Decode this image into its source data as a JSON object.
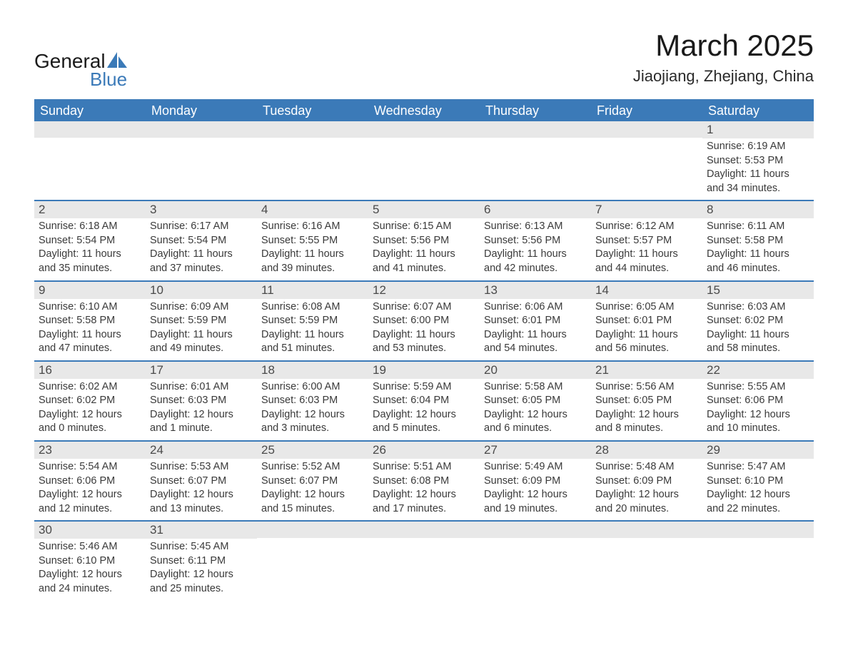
{
  "logo": {
    "word1": "General",
    "word2": "Blue",
    "shape_color": "#3b7ab8"
  },
  "title": "March 2025",
  "location": "Jiaojiang, Zhejiang, China",
  "colors": {
    "header_bg": "#3b7ab8",
    "daynum_bg": "#e8e8e8",
    "text_dark": "#1a1a1a",
    "text_body": "#3a3a3a"
  },
  "days_of_week": [
    "Sunday",
    "Monday",
    "Tuesday",
    "Wednesday",
    "Thursday",
    "Friday",
    "Saturday"
  ],
  "weeks": [
    [
      {
        "day": "",
        "sunrise": "",
        "sunset": "",
        "daylight": ""
      },
      {
        "day": "",
        "sunrise": "",
        "sunset": "",
        "daylight": ""
      },
      {
        "day": "",
        "sunrise": "",
        "sunset": "",
        "daylight": ""
      },
      {
        "day": "",
        "sunrise": "",
        "sunset": "",
        "daylight": ""
      },
      {
        "day": "",
        "sunrise": "",
        "sunset": "",
        "daylight": ""
      },
      {
        "day": "",
        "sunrise": "",
        "sunset": "",
        "daylight": ""
      },
      {
        "day": "1",
        "sunrise": "Sunrise: 6:19 AM",
        "sunset": "Sunset: 5:53 PM",
        "daylight": "Daylight: 11 hours and 34 minutes."
      }
    ],
    [
      {
        "day": "2",
        "sunrise": "Sunrise: 6:18 AM",
        "sunset": "Sunset: 5:54 PM",
        "daylight": "Daylight: 11 hours and 35 minutes."
      },
      {
        "day": "3",
        "sunrise": "Sunrise: 6:17 AM",
        "sunset": "Sunset: 5:54 PM",
        "daylight": "Daylight: 11 hours and 37 minutes."
      },
      {
        "day": "4",
        "sunrise": "Sunrise: 6:16 AM",
        "sunset": "Sunset: 5:55 PM",
        "daylight": "Daylight: 11 hours and 39 minutes."
      },
      {
        "day": "5",
        "sunrise": "Sunrise: 6:15 AM",
        "sunset": "Sunset: 5:56 PM",
        "daylight": "Daylight: 11 hours and 41 minutes."
      },
      {
        "day": "6",
        "sunrise": "Sunrise: 6:13 AM",
        "sunset": "Sunset: 5:56 PM",
        "daylight": "Daylight: 11 hours and 42 minutes."
      },
      {
        "day": "7",
        "sunrise": "Sunrise: 6:12 AM",
        "sunset": "Sunset: 5:57 PM",
        "daylight": "Daylight: 11 hours and 44 minutes."
      },
      {
        "day": "8",
        "sunrise": "Sunrise: 6:11 AM",
        "sunset": "Sunset: 5:58 PM",
        "daylight": "Daylight: 11 hours and 46 minutes."
      }
    ],
    [
      {
        "day": "9",
        "sunrise": "Sunrise: 6:10 AM",
        "sunset": "Sunset: 5:58 PM",
        "daylight": "Daylight: 11 hours and 47 minutes."
      },
      {
        "day": "10",
        "sunrise": "Sunrise: 6:09 AM",
        "sunset": "Sunset: 5:59 PM",
        "daylight": "Daylight: 11 hours and 49 minutes."
      },
      {
        "day": "11",
        "sunrise": "Sunrise: 6:08 AM",
        "sunset": "Sunset: 5:59 PM",
        "daylight": "Daylight: 11 hours and 51 minutes."
      },
      {
        "day": "12",
        "sunrise": "Sunrise: 6:07 AM",
        "sunset": "Sunset: 6:00 PM",
        "daylight": "Daylight: 11 hours and 53 minutes."
      },
      {
        "day": "13",
        "sunrise": "Sunrise: 6:06 AM",
        "sunset": "Sunset: 6:01 PM",
        "daylight": "Daylight: 11 hours and 54 minutes."
      },
      {
        "day": "14",
        "sunrise": "Sunrise: 6:05 AM",
        "sunset": "Sunset: 6:01 PM",
        "daylight": "Daylight: 11 hours and 56 minutes."
      },
      {
        "day": "15",
        "sunrise": "Sunrise: 6:03 AM",
        "sunset": "Sunset: 6:02 PM",
        "daylight": "Daylight: 11 hours and 58 minutes."
      }
    ],
    [
      {
        "day": "16",
        "sunrise": "Sunrise: 6:02 AM",
        "sunset": "Sunset: 6:02 PM",
        "daylight": "Daylight: 12 hours and 0 minutes."
      },
      {
        "day": "17",
        "sunrise": "Sunrise: 6:01 AM",
        "sunset": "Sunset: 6:03 PM",
        "daylight": "Daylight: 12 hours and 1 minute."
      },
      {
        "day": "18",
        "sunrise": "Sunrise: 6:00 AM",
        "sunset": "Sunset: 6:03 PM",
        "daylight": "Daylight: 12 hours and 3 minutes."
      },
      {
        "day": "19",
        "sunrise": "Sunrise: 5:59 AM",
        "sunset": "Sunset: 6:04 PM",
        "daylight": "Daylight: 12 hours and 5 minutes."
      },
      {
        "day": "20",
        "sunrise": "Sunrise: 5:58 AM",
        "sunset": "Sunset: 6:05 PM",
        "daylight": "Daylight: 12 hours and 6 minutes."
      },
      {
        "day": "21",
        "sunrise": "Sunrise: 5:56 AM",
        "sunset": "Sunset: 6:05 PM",
        "daylight": "Daylight: 12 hours and 8 minutes."
      },
      {
        "day": "22",
        "sunrise": "Sunrise: 5:55 AM",
        "sunset": "Sunset: 6:06 PM",
        "daylight": "Daylight: 12 hours and 10 minutes."
      }
    ],
    [
      {
        "day": "23",
        "sunrise": "Sunrise: 5:54 AM",
        "sunset": "Sunset: 6:06 PM",
        "daylight": "Daylight: 12 hours and 12 minutes."
      },
      {
        "day": "24",
        "sunrise": "Sunrise: 5:53 AM",
        "sunset": "Sunset: 6:07 PM",
        "daylight": "Daylight: 12 hours and 13 minutes."
      },
      {
        "day": "25",
        "sunrise": "Sunrise: 5:52 AM",
        "sunset": "Sunset: 6:07 PM",
        "daylight": "Daylight: 12 hours and 15 minutes."
      },
      {
        "day": "26",
        "sunrise": "Sunrise: 5:51 AM",
        "sunset": "Sunset: 6:08 PM",
        "daylight": "Daylight: 12 hours and 17 minutes."
      },
      {
        "day": "27",
        "sunrise": "Sunrise: 5:49 AM",
        "sunset": "Sunset: 6:09 PM",
        "daylight": "Daylight: 12 hours and 19 minutes."
      },
      {
        "day": "28",
        "sunrise": "Sunrise: 5:48 AM",
        "sunset": "Sunset: 6:09 PM",
        "daylight": "Daylight: 12 hours and 20 minutes."
      },
      {
        "day": "29",
        "sunrise": "Sunrise: 5:47 AM",
        "sunset": "Sunset: 6:10 PM",
        "daylight": "Daylight: 12 hours and 22 minutes."
      }
    ],
    [
      {
        "day": "30",
        "sunrise": "Sunrise: 5:46 AM",
        "sunset": "Sunset: 6:10 PM",
        "daylight": "Daylight: 12 hours and 24 minutes."
      },
      {
        "day": "31",
        "sunrise": "Sunrise: 5:45 AM",
        "sunset": "Sunset: 6:11 PM",
        "daylight": "Daylight: 12 hours and 25 minutes."
      },
      {
        "day": "",
        "sunrise": "",
        "sunset": "",
        "daylight": ""
      },
      {
        "day": "",
        "sunrise": "",
        "sunset": "",
        "daylight": ""
      },
      {
        "day": "",
        "sunrise": "",
        "sunset": "",
        "daylight": ""
      },
      {
        "day": "",
        "sunrise": "",
        "sunset": "",
        "daylight": ""
      },
      {
        "day": "",
        "sunrise": "",
        "sunset": "",
        "daylight": ""
      }
    ]
  ]
}
